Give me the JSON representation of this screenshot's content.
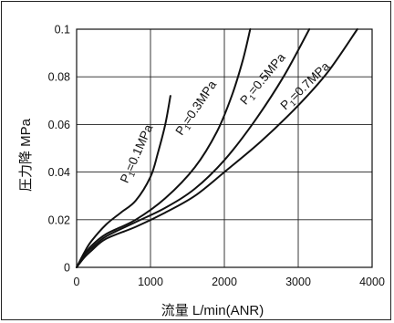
{
  "chart_data": {
    "type": "line",
    "title": "",
    "xlabel": "流量 L/min(ANR)",
    "ylabel": "圧力降 MPa",
    "xlim": [
      0,
      4000
    ],
    "ylim": [
      0,
      0.1
    ],
    "xticks": [
      "0",
      "1000",
      "2000",
      "3000",
      "4000"
    ],
    "yticks": [
      "0",
      "0.02",
      "0.04",
      "0.06",
      "0.08",
      "0.1"
    ],
    "grid": true,
    "series": [
      {
        "name": "P1=0.1MPa",
        "label_main": "P",
        "label_sub": "1",
        "label_rest": "=0.1MPa",
        "x": [
          0,
          100,
          200,
          400,
          600,
          800,
          1000,
          1100,
          1200,
          1270
        ],
        "y": [
          0,
          0.006,
          0.011,
          0.018,
          0.023,
          0.028,
          0.038,
          0.048,
          0.06,
          0.072
        ]
      },
      {
        "name": "P1=0.3MPa",
        "label_main": "P",
        "label_sub": "1",
        "label_rest": "=0.3MPa",
        "x": [
          0,
          100,
          200,
          400,
          800,
          1200,
          1600,
          1900,
          2100,
          2250,
          2350
        ],
        "y": [
          0,
          0.005,
          0.009,
          0.014,
          0.02,
          0.029,
          0.042,
          0.057,
          0.072,
          0.087,
          0.1
        ]
      },
      {
        "name": "P1=0.5MPa",
        "label_main": "P",
        "label_sub": "1",
        "label_rest": "=0.5MPa",
        "x": [
          0,
          100,
          200,
          400,
          800,
          1200,
          1600,
          2000,
          2400,
          2800,
          3150
        ],
        "y": [
          0,
          0.005,
          0.008,
          0.013,
          0.019,
          0.025,
          0.033,
          0.045,
          0.061,
          0.08,
          0.1
        ]
      },
      {
        "name": "P1=0.7MPa",
        "label_main": "P",
        "label_sub": "1",
        "label_rest": "=0.7MPa",
        "x": [
          0,
          100,
          200,
          400,
          800,
          1200,
          1600,
          2000,
          2500,
          3000,
          3400,
          3800
        ],
        "y": [
          0,
          0.004,
          0.007,
          0.012,
          0.017,
          0.023,
          0.03,
          0.04,
          0.053,
          0.068,
          0.082,
          0.1
        ]
      }
    ]
  }
}
